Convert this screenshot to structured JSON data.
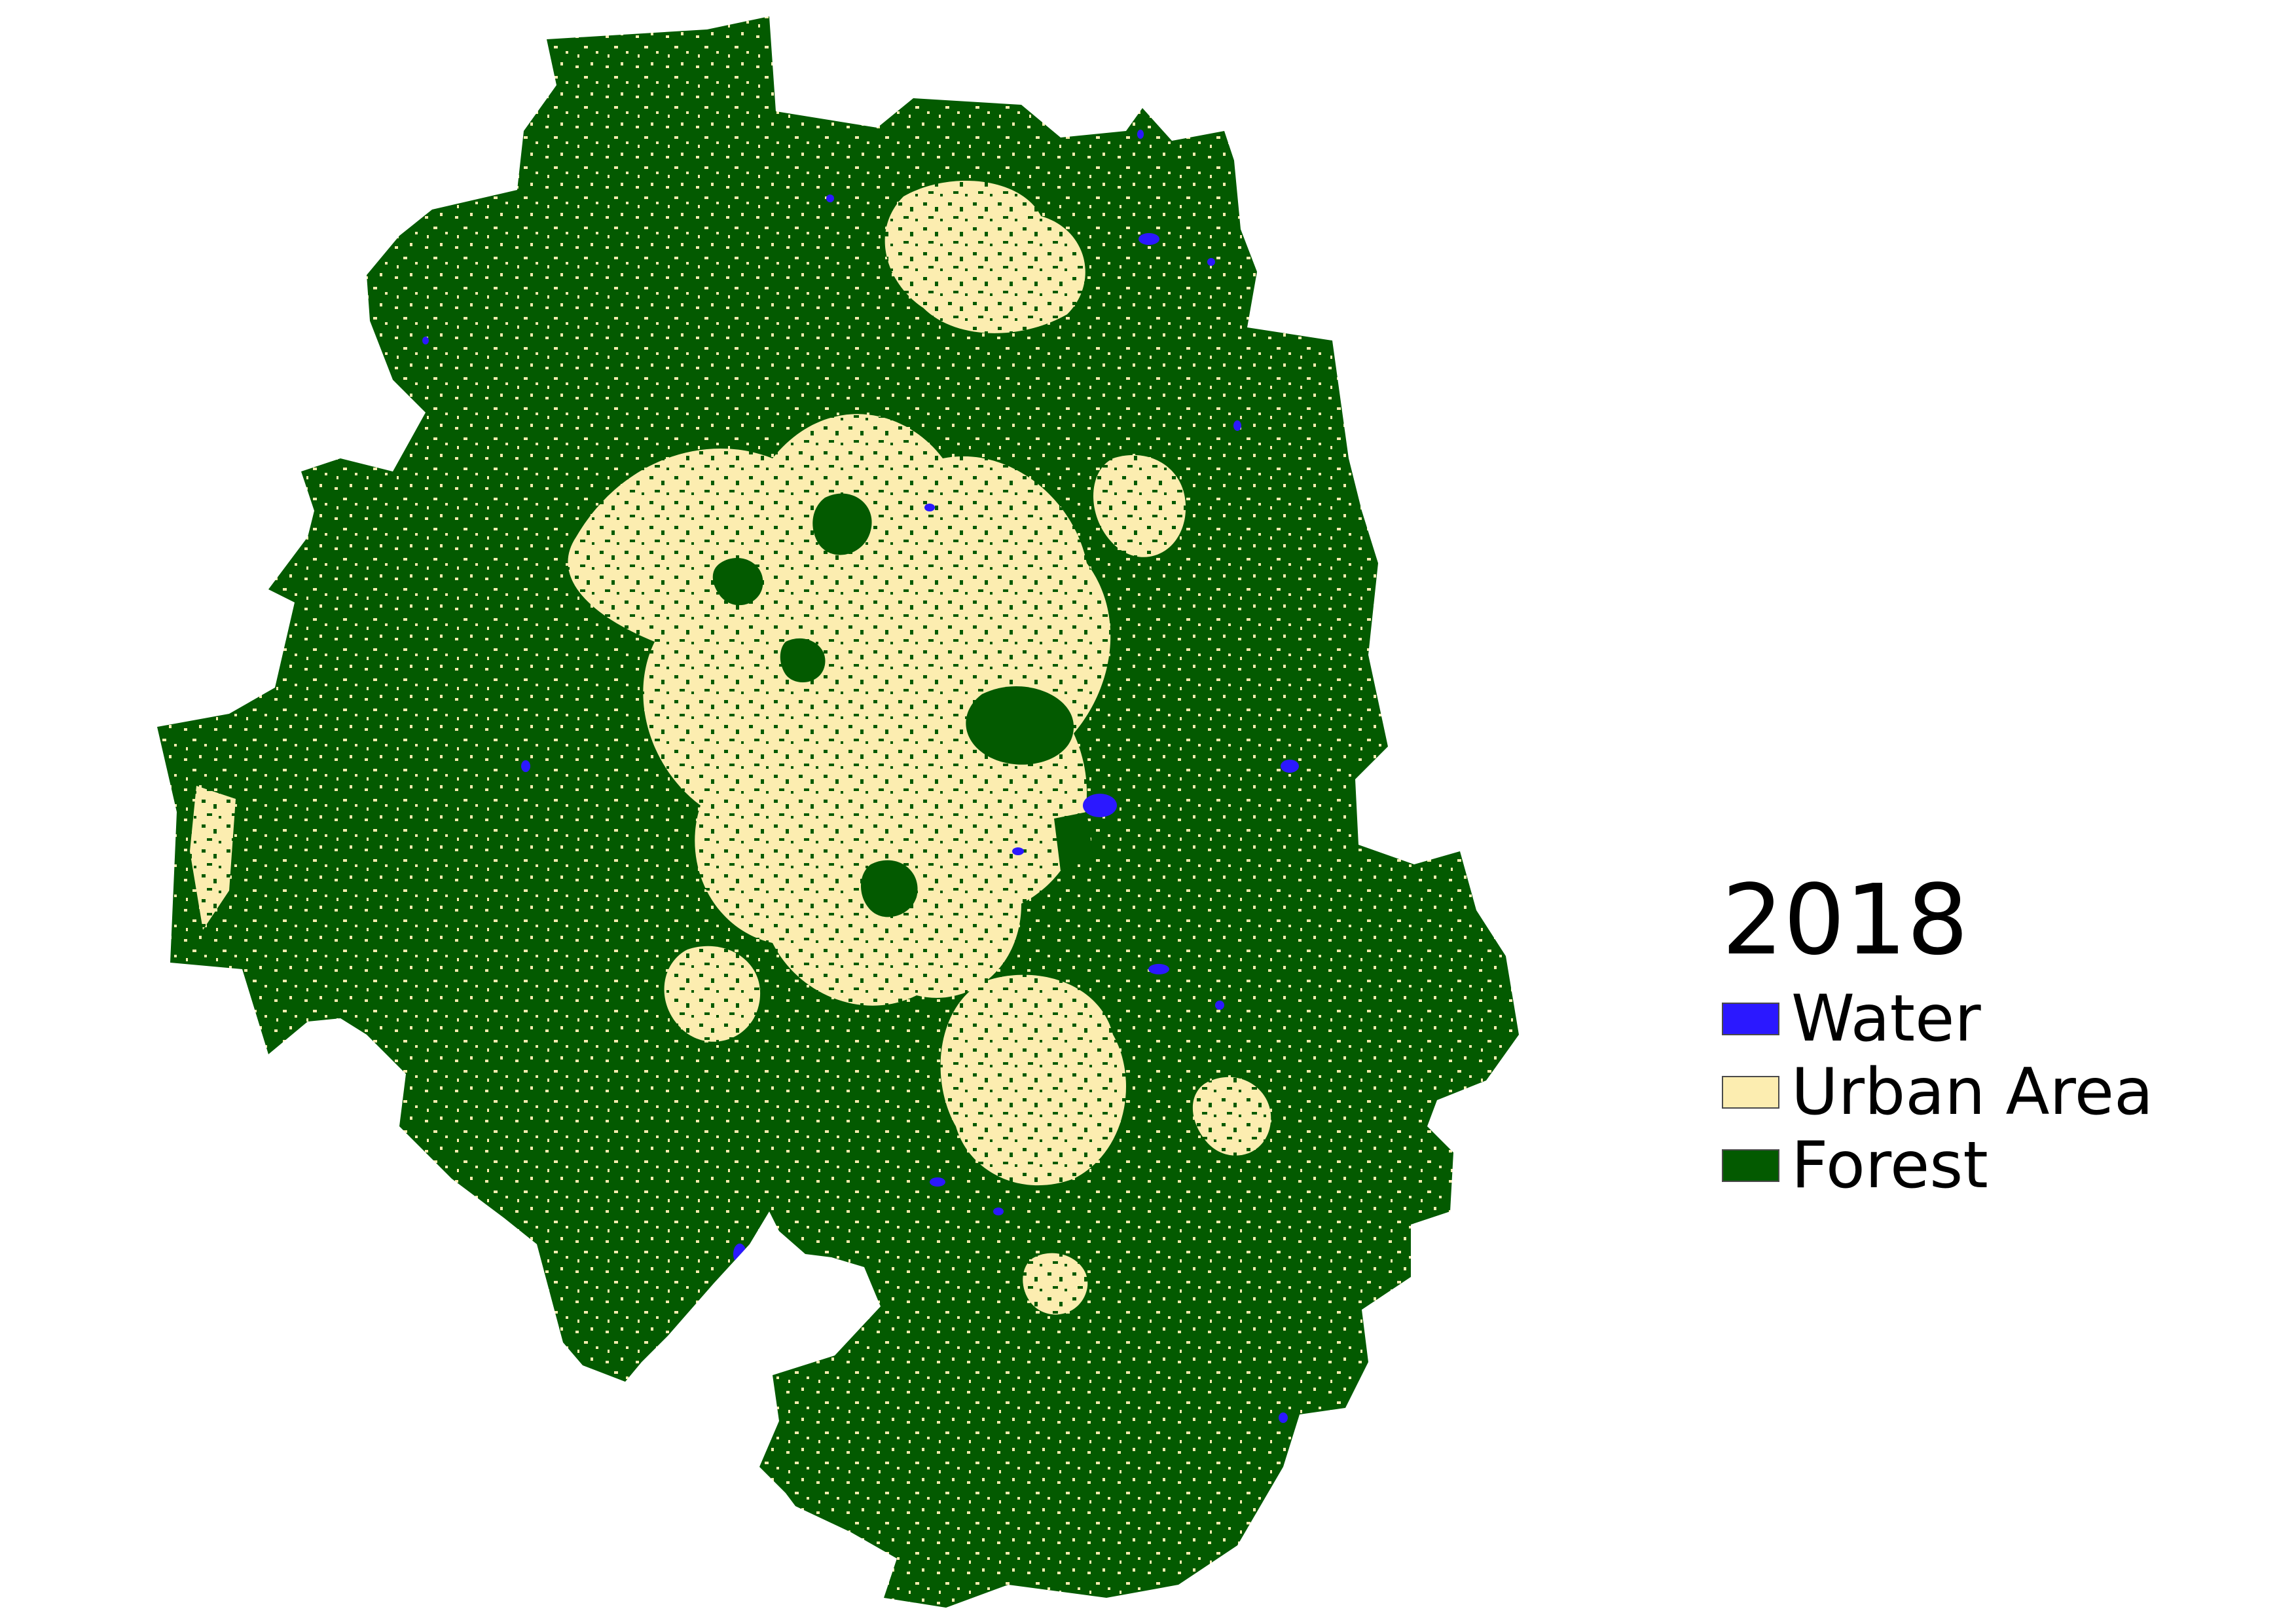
{
  "legend": {
    "title": "2018",
    "items": [
      {
        "key": "water",
        "label": "Water",
        "color": "#2b18ff"
      },
      {
        "key": "urban",
        "label": "Urban Area",
        "color": "#fcedb0"
      },
      {
        "key": "forest",
        "label": "Forest",
        "color": "#035a00"
      }
    ]
  },
  "map": {
    "background": "#ffffff"
  }
}
